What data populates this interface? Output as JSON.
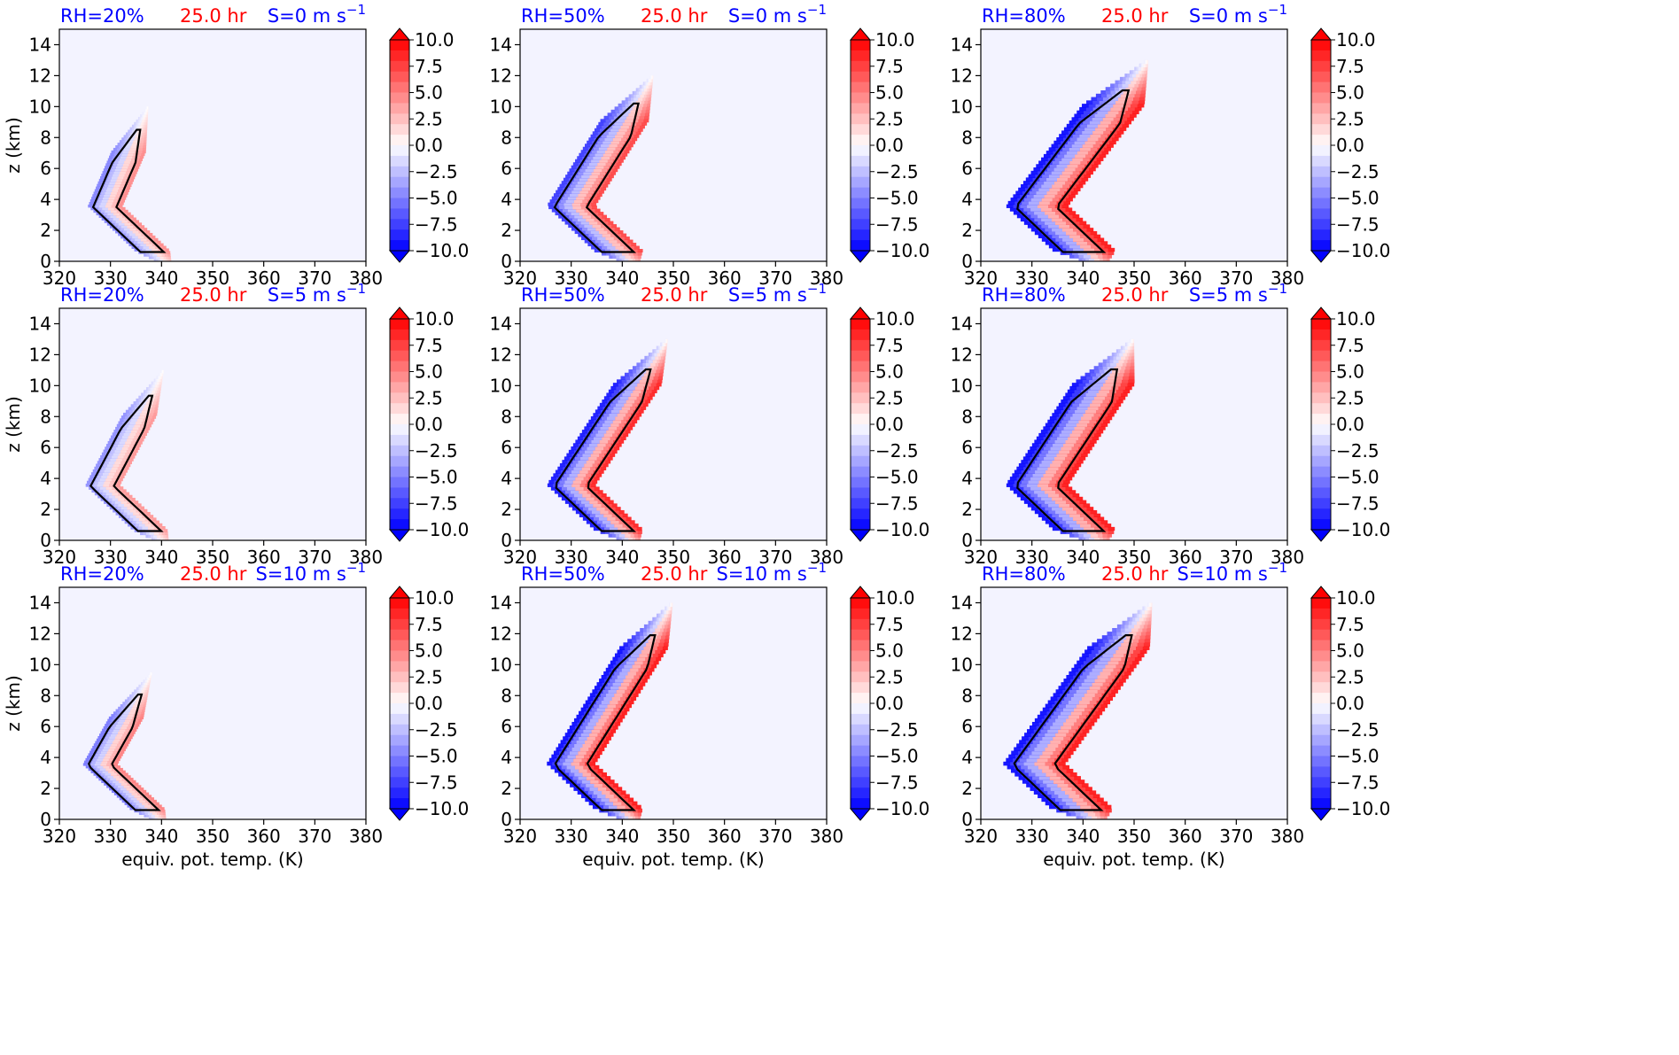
{
  "colors": {
    "rh_label": "#0000ff",
    "time_label": "#ff0000",
    "shear_label": "#0000ff",
    "contour": "#000000",
    "background_field": "#f3f3ff",
    "colormap": "bwr"
  },
  "colorbar": {
    "ticks": [
      "10.0",
      "7.5",
      "5.0",
      "2.5",
      "0.0",
      "−2.5",
      "−5.0",
      "−7.5",
      "−10.0"
    ],
    "min": -10.0,
    "max": 10.0,
    "extend": "both"
  },
  "axes": {
    "ylabel": "z (km)",
    "xlabel": "equiv. pot. temp. (K)",
    "xticks": [
      "320",
      "330",
      "340",
      "350",
      "360",
      "370",
      "380"
    ],
    "yticks": [
      "0",
      "2",
      "4",
      "6",
      "8",
      "10",
      "12",
      "14"
    ]
  },
  "chart_data": [
    {
      "type": "heatmap",
      "rh": "RH=20%",
      "time": "25.0 hr",
      "shear": "S=0 m s",
      "shear_exp": "−1",
      "xlim": [
        320,
        380
      ],
      "ylim": [
        0,
        15
      ],
      "show_ylabel": true,
      "show_xlabel": false
    },
    {
      "type": "heatmap",
      "rh": "RH=50%",
      "time": "25.0 hr",
      "shear": "S=0 m s",
      "shear_exp": "−1",
      "xlim": [
        320,
        380
      ],
      "ylim": [
        0,
        15
      ],
      "show_ylabel": false,
      "show_xlabel": false
    },
    {
      "type": "heatmap",
      "rh": "RH=80%",
      "time": "25.0 hr",
      "shear": "S=0 m s",
      "shear_exp": "−1",
      "xlim": [
        320,
        380
      ],
      "ylim": [
        0,
        15
      ],
      "show_ylabel": false,
      "show_xlabel": false
    },
    {
      "type": "heatmap",
      "rh": "RH=20%",
      "time": "25.0 hr",
      "shear": "S=5 m s",
      "shear_exp": "−1",
      "xlim": [
        320,
        380
      ],
      "ylim": [
        0,
        15
      ],
      "show_ylabel": true,
      "show_xlabel": false
    },
    {
      "type": "heatmap",
      "rh": "RH=50%",
      "time": "25.0 hr",
      "shear": "S=5 m s",
      "shear_exp": "−1",
      "xlim": [
        320,
        380
      ],
      "ylim": [
        0,
        15
      ],
      "show_ylabel": false,
      "show_xlabel": false
    },
    {
      "type": "heatmap",
      "rh": "RH=80%",
      "time": "25.0 hr",
      "shear": "S=5 m s",
      "shear_exp": "−1",
      "xlim": [
        320,
        380
      ],
      "ylim": [
        0,
        15
      ],
      "show_ylabel": false,
      "show_xlabel": false
    },
    {
      "type": "heatmap",
      "rh": "RH=20%",
      "time": "25.0 hr",
      "shear": "S=10 m s",
      "shear_exp": "−1",
      "xlim": [
        320,
        380
      ],
      "ylim": [
        0,
        15
      ],
      "show_ylabel": true,
      "show_xlabel": true
    },
    {
      "type": "heatmap",
      "rh": "RH=50%",
      "time": "25.0 hr",
      "shear": "S=10 m s",
      "shear_exp": "−1",
      "xlim": [
        320,
        380
      ],
      "ylim": [
        0,
        15
      ],
      "show_ylabel": false,
      "show_xlabel": true
    },
    {
      "type": "heatmap",
      "rh": "RH=80%",
      "time": "25.0 hr",
      "shear": "S=10 m s",
      "shear_exp": "−1",
      "xlim": [
        320,
        380
      ],
      "ylim": [
        0,
        15
      ],
      "show_ylabel": false,
      "show_xlabel": true
    }
  ]
}
